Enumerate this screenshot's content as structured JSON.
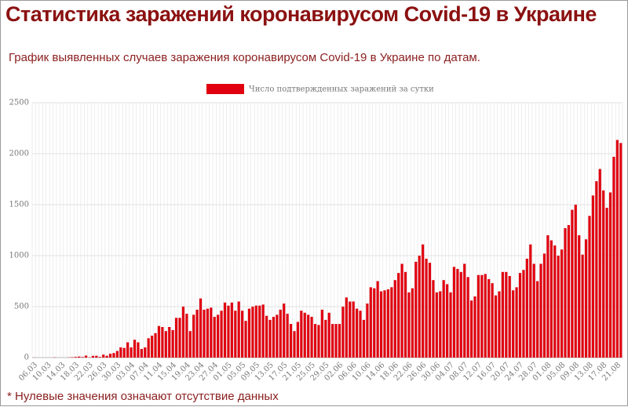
{
  "header": {
    "title": "Статистика заражений коронавирусом Covid-19 в Украине",
    "subtitle": "График выявленных случаев заражения коронавирусом Covid-19 в Украине по датам."
  },
  "chart_data": {
    "type": "bar",
    "categories": [
      "06.03",
      null,
      null,
      null,
      "10.03",
      null,
      null,
      null,
      "14.03",
      null,
      null,
      null,
      "18.03",
      null,
      null,
      null,
      "22.03",
      null,
      null,
      null,
      "26.03",
      null,
      null,
      null,
      "30.03",
      null,
      null,
      null,
      "03.04",
      null,
      null,
      null,
      "07.04",
      null,
      null,
      null,
      "11.04",
      null,
      null,
      null,
      "15.04",
      null,
      null,
      null,
      "19.04",
      null,
      null,
      null,
      "23.04",
      null,
      null,
      null,
      "27.04",
      null,
      null,
      null,
      "01.05",
      null,
      null,
      null,
      "05.05",
      null,
      null,
      null,
      "09.05",
      null,
      null,
      null,
      "13.05",
      null,
      null,
      null,
      "17.05",
      null,
      null,
      null,
      "21.05",
      null,
      null,
      null,
      "25.05",
      null,
      null,
      null,
      "29.05",
      null,
      null,
      null,
      "02.06",
      null,
      null,
      null,
      "06.06",
      null,
      null,
      null,
      "10.06",
      null,
      null,
      null,
      "14.06",
      null,
      null,
      null,
      "18.06",
      null,
      null,
      null,
      "22.06",
      null,
      null,
      null,
      "26.06",
      null,
      null,
      null,
      "30.06",
      null,
      null,
      null,
      "04.07",
      null,
      null,
      null,
      "08.07",
      null,
      null,
      null,
      "12.07",
      null,
      null,
      null,
      "16.07",
      null,
      null,
      null,
      "20.07",
      null,
      null,
      null,
      "24.07",
      null,
      null,
      null,
      "28.07",
      null,
      null,
      null,
      "01.08",
      null,
      null,
      null,
      "05.08",
      null,
      null,
      null,
      "09.08",
      null,
      null,
      null,
      "13.08",
      null,
      null,
      null,
      "17.08",
      null,
      null,
      null,
      "21.08",
      null
    ],
    "series": [
      {
        "name": "Число подтвержденных заражений за сутки",
        "color": "#e0000f",
        "values": [
          1,
          0,
          0,
          0,
          0,
          0,
          2,
          0,
          0,
          0,
          2,
          4,
          7,
          10,
          6,
          20,
          3,
          17,
          18,
          7,
          29,
          18,
          38,
          45,
          65,
          100,
          95,
          150,
          100,
          175,
          150,
          85,
          100,
          190,
          215,
          240,
          310,
          300,
          260,
          300,
          270,
          390,
          390,
          500,
          430,
          260,
          420,
          470,
          580,
          470,
          480,
          490,
          400,
          420,
          460,
          540,
          510,
          540,
          460,
          550,
          460,
          360,
          480,
          500,
          510,
          510,
          520,
          410,
          370,
          400,
          420,
          470,
          530,
          430,
          330,
          260,
          350,
          460,
          440,
          420,
          400,
          330,
          320,
          470,
          370,
          440,
          330,
          330,
          330,
          500,
          590,
          550,
          550,
          480,
          460,
          370,
          530,
          690,
          680,
          750,
          650,
          660,
          670,
          690,
          760,
          830,
          920,
          840,
          640,
          680,
          940,
          1000,
          1110,
          970,
          930,
          760,
          640,
          650,
          760,
          720,
          640,
          890,
          870,
          840,
          920,
          790,
          560,
          600,
          810,
          810,
          820,
          770,
          730,
          610,
          650,
          840,
          840,
          800,
          660,
          690,
          830,
          860,
          970,
          1110,
          920,
          750,
          920,
          1020,
          1200,
          1150,
          1100,
          1000,
          1060,
          1270,
          1300,
          1450,
          1500,
          1200,
          1010,
          1160,
          1390,
          1590,
          1730,
          1850,
          1640,
          1470,
          1620,
          1970,
          2135,
          2105
        ]
      }
    ],
    "ylim": [
      0,
      2500
    ],
    "yticks": [
      0,
      500,
      1000,
      1500,
      2000,
      2500
    ],
    "grid": true,
    "legend": "top"
  },
  "footnote": "* Нулевые значения означают отсутствие данных"
}
